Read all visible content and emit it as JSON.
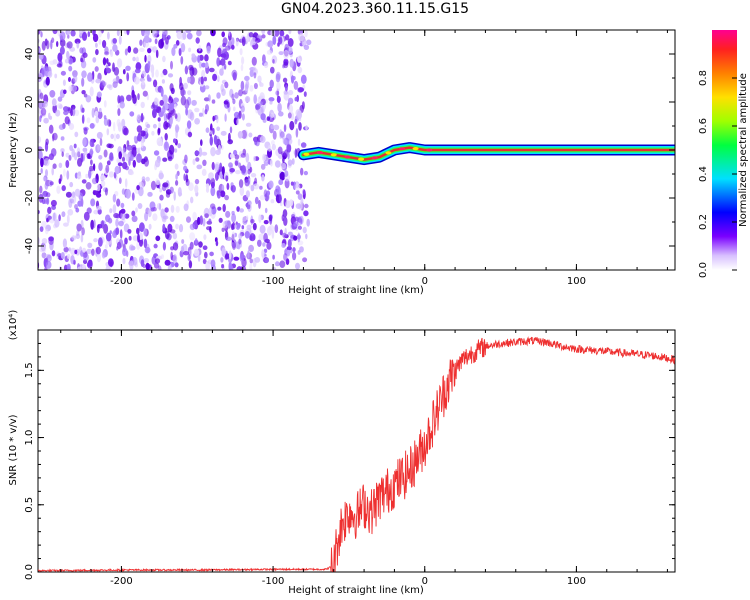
{
  "title": "GN04.2023.360.11.15.G15",
  "colors": {
    "snr_line": "#ee3030",
    "background_points": "#7a3cf0",
    "track_core": "#e83030",
    "track_halo": "#00e0ff"
  },
  "chart_data": [
    {
      "type": "heatmap",
      "xlabel": "Height of straight line (km)",
      "ylabel": "Frequency (Hz)",
      "xlim": [
        -255,
        165
      ],
      "ylim": [
        -50,
        50
      ],
      "xticks": [
        "-200",
        "-100",
        "0",
        "100"
      ],
      "xtick_values": [
        -200,
        -100,
        0,
        100
      ],
      "yticks": [
        "-40",
        "-20",
        "0",
        "20",
        "40"
      ],
      "ytick_values": [
        -40,
        -20,
        0,
        20,
        40
      ],
      "colorbar": {
        "label": "Normalized spectral amplitude",
        "range": [
          0,
          1
        ],
        "ticks": [
          "0.0",
          "0.2",
          "0.4",
          "0.6",
          "0.8"
        ],
        "tick_values": [
          0.0,
          0.2,
          0.4,
          0.6,
          0.8
        ],
        "colormap": "rainbow (white-violet-blue-cyan-green-yellow-orange-red-magenta)"
      },
      "noise_region_x": [
        -255,
        -78
      ],
      "signal_track": {
        "x": [
          -80,
          -70,
          -60,
          -50,
          -40,
          -30,
          -20,
          -10,
          0,
          10,
          20,
          40,
          60,
          80,
          100,
          120,
          140,
          165
        ],
        "y": [
          -2,
          -1,
          -2,
          -3,
          -4,
          -3,
          0,
          1,
          0,
          0,
          0,
          0,
          0,
          0,
          0,
          0,
          0,
          0
        ]
      }
    },
    {
      "type": "line",
      "xlabel": "Height of straight line (km)",
      "ylabel": "SNR (10 * v/v)",
      "y_multiplier": "(x10⁴)",
      "xlim": [
        -255,
        165
      ],
      "ylim": [
        0,
        1.8
      ],
      "xticks": [
        "-200",
        "-100",
        "0",
        "100"
      ],
      "xtick_values": [
        -200,
        -100,
        0,
        100
      ],
      "yticks": [
        "0.0",
        "0.5",
        "1.0",
        "1.5"
      ],
      "ytick_values": [
        0.0,
        0.5,
        1.0,
        1.5
      ],
      "series": [
        {
          "x": [
            -255,
            -200,
            -150,
            -100,
            -65,
            -60,
            -58,
            -55,
            -50,
            -45,
            -40,
            -35,
            -30,
            -25,
            -20,
            -15,
            -10,
            -5,
            0,
            5,
            10,
            15,
            20,
            25,
            30,
            35,
            40,
            50,
            60,
            70,
            80,
            90,
            100,
            110,
            120,
            130,
            140,
            150,
            160,
            165
          ],
          "y": [
            0.01,
            0.015,
            0.015,
            0.02,
            0.02,
            0.05,
            0.2,
            0.35,
            0.45,
            0.42,
            0.5,
            0.45,
            0.55,
            0.6,
            0.65,
            0.7,
            0.75,
            0.85,
            0.95,
            1.1,
            1.25,
            1.4,
            1.5,
            1.58,
            1.62,
            1.65,
            1.68,
            1.7,
            1.71,
            1.72,
            1.71,
            1.68,
            1.66,
            1.65,
            1.64,
            1.63,
            1.62,
            1.61,
            1.59,
            1.58
          ]
        }
      ]
    }
  ]
}
